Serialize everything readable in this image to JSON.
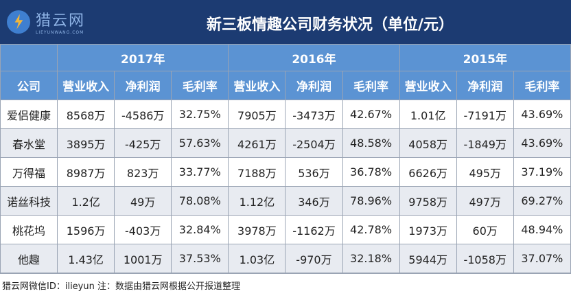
{
  "header": {
    "logo_cn": "猎云网",
    "logo_en": "LIEYUNWANG.COM",
    "title": "新三板情趣公司财务状况（单位/元）"
  },
  "years": [
    "2017年",
    "2016年",
    "2015年"
  ],
  "columns": {
    "company": "公司",
    "metrics": [
      "营业收入",
      "净利润",
      "毛利率"
    ]
  },
  "rows": [
    {
      "company": "爱侣健康",
      "values": [
        "8568万",
        "-4586万",
        "32.75%",
        "7905万",
        "-3473万",
        "42.67%",
        "1.01亿",
        "-7191万",
        "43.69%"
      ]
    },
    {
      "company": "春水堂",
      "values": [
        "3895万",
        "-425万",
        "57.63%",
        "4261万",
        "-2504万",
        "48.58%",
        "4058万",
        "-1849万",
        "43.69%"
      ]
    },
    {
      "company": "万得福",
      "values": [
        "8987万",
        "823万",
        "33.77%",
        "7188万",
        "536万",
        "36.78%",
        "6626万",
        "495万",
        "37.19%"
      ]
    },
    {
      "company": "诺丝科技",
      "values": [
        "1.2亿",
        "49万",
        "78.08%",
        "1.12亿",
        "346万",
        "78.96%",
        "9758万",
        "497万",
        "69.27%"
      ]
    },
    {
      "company": "桃花坞",
      "values": [
        "1596万",
        "-403万",
        "32.84%",
        "3978万",
        "-1162万",
        "42.78%",
        "1973万",
        "60万",
        "48.94%"
      ]
    },
    {
      "company": "他趣",
      "values": [
        "1.43亿",
        "1001万",
        "37.53%",
        "1.03亿",
        "-970万",
        "32.18%",
        "5944万",
        "-1058万",
        "37.07%"
      ]
    }
  ],
  "footer": "猎云网微信ID：ilieyun   注：数据由猎云网根据公开报道整理"
}
